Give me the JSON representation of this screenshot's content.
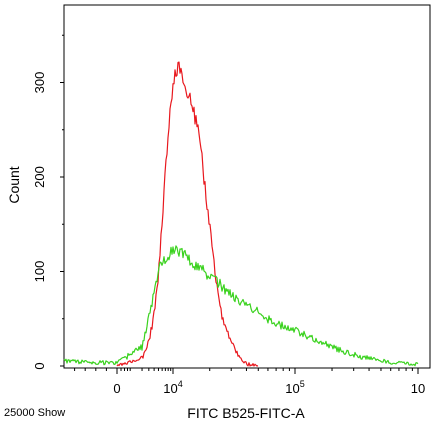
{
  "chart_data": {
    "type": "line",
    "title": "",
    "xlabel": "FITC B525-FITC-A",
    "ylabel": "Count",
    "x_scale": "biexponential",
    "xlim": [
      -1000,
      1000000
    ],
    "ylim": [
      0,
      370
    ],
    "grid": false,
    "legend": "none",
    "footer_left": "25000 Show",
    "x_ticks": [
      {
        "value": 0,
        "base": "0",
        "exp": ""
      },
      {
        "value": 10000,
        "base": "10",
        "exp": "4"
      },
      {
        "value": 100000,
        "base": "10",
        "exp": "5"
      },
      {
        "value": 1000000,
        "base": "10",
        "exp": ""
      }
    ],
    "y_ticks": [
      {
        "value": 0,
        "label": "0"
      },
      {
        "value": 100,
        "label": "100"
      },
      {
        "value": 200,
        "label": "200"
      },
      {
        "value": 300,
        "label": "300"
      }
    ],
    "series": [
      {
        "color": "#e8181e",
        "x": [
          0,
          2000,
          3000,
          4000,
          5000,
          6000,
          7000,
          8000,
          9000,
          10000,
          11000,
          12000,
          13000,
          14000,
          15000,
          16000,
          17000,
          18000,
          20000,
          22000,
          25000,
          30000,
          35000,
          40000,
          50000
        ],
        "y": [
          0,
          8,
          25,
          55,
          95,
          155,
          205,
          245,
          275,
          300,
          318,
          305,
          290,
          280,
          265,
          250,
          230,
          195,
          150,
          100,
          55,
          25,
          8,
          2,
          0
        ]
      },
      {
        "color": "#3ad21e",
        "x": [
          -1000,
          0,
          2000,
          3000,
          4000,
          5000,
          6000,
          7000,
          8000,
          9000,
          10000,
          11000,
          12000,
          13000,
          14000,
          16000,
          18000,
          20000,
          25000,
          30000,
          40000,
          50000,
          60000,
          80000,
          100000,
          150000,
          200000,
          300000,
          500000,
          1000000
        ],
        "y": [
          5,
          3,
          20,
          50,
          80,
          100,
          110,
          115,
          118,
          120,
          122,
          120,
          118,
          115,
          112,
          105,
          100,
          95,
          85,
          75,
          65,
          58,
          50,
          42,
          38,
          28,
          20,
          12,
          5,
          2
        ]
      }
    ]
  }
}
